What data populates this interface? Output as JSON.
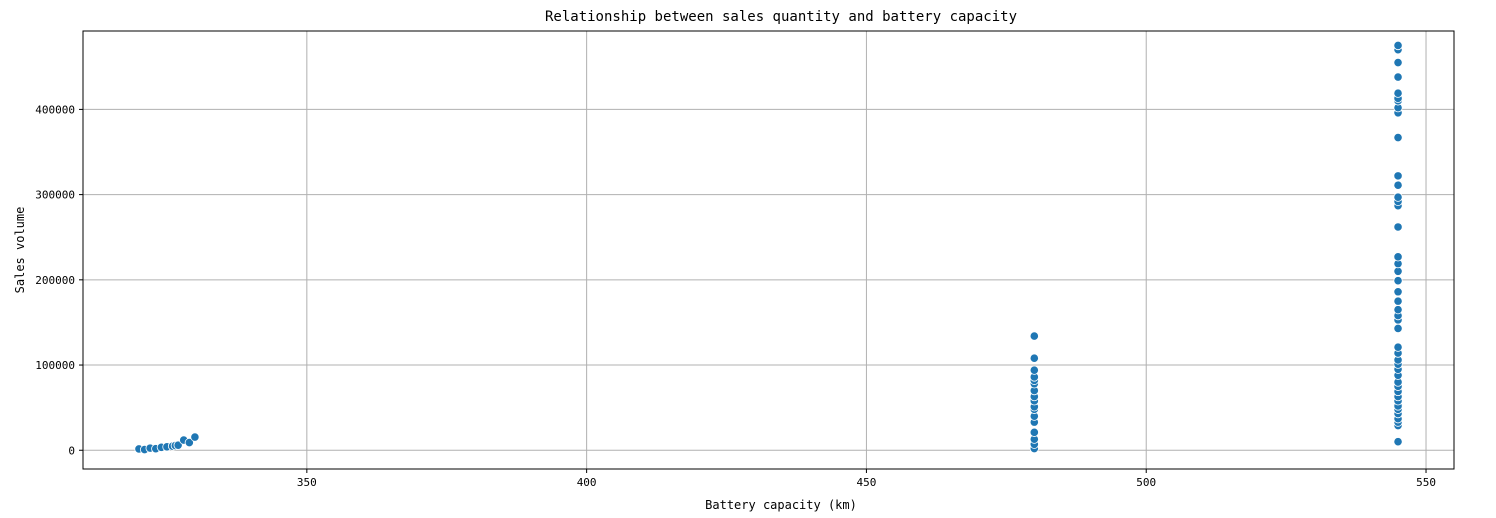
{
  "chart_data": {
    "type": "scatter",
    "title": "Relationship between sales quantity and battery capacity",
    "xlabel": "Battery capacity (km)",
    "ylabel": "Sales volume",
    "xlim": [
      310,
      555
    ],
    "ylim": [
      -22000,
      492000
    ],
    "xticks": [
      350,
      400,
      450,
      500,
      550
    ],
    "yticks": [
      0,
      100000,
      200000,
      300000,
      400000
    ],
    "grid": true,
    "legend": "none",
    "marker_color": "#1f77b4",
    "series": [
      {
        "points": [
          [
            320,
            1500
          ],
          [
            321,
            800
          ],
          [
            322,
            2500
          ],
          [
            323,
            1800
          ],
          [
            324,
            3500
          ],
          [
            325,
            4000
          ],
          [
            326,
            4800
          ],
          [
            326.5,
            5500
          ],
          [
            327,
            6000
          ],
          [
            328,
            12000
          ],
          [
            329,
            9000
          ],
          [
            330,
            15500
          ],
          [
            480,
            2000
          ],
          [
            480,
            7000
          ],
          [
            480,
            13000
          ],
          [
            480,
            21000
          ],
          [
            480,
            33000
          ],
          [
            480,
            40000
          ],
          [
            480,
            48000
          ],
          [
            480,
            51000
          ],
          [
            480,
            58000
          ],
          [
            480,
            63000
          ],
          [
            480,
            70000
          ],
          [
            480,
            78000
          ],
          [
            480,
            82000
          ],
          [
            480,
            86000
          ],
          [
            480,
            94000
          ],
          [
            480,
            108000
          ],
          [
            480,
            134000
          ],
          [
            545,
            10000
          ],
          [
            545,
            29000
          ],
          [
            545,
            33000
          ],
          [
            545,
            37000
          ],
          [
            545,
            43000
          ],
          [
            545,
            48000
          ],
          [
            545,
            52000
          ],
          [
            545,
            58000
          ],
          [
            545,
            63000
          ],
          [
            545,
            69000
          ],
          [
            545,
            75000
          ],
          [
            545,
            80000
          ],
          [
            545,
            88000
          ],
          [
            545,
            95000
          ],
          [
            545,
            101000
          ],
          [
            545,
            106000
          ],
          [
            545,
            114000
          ],
          [
            545,
            121000
          ],
          [
            545,
            143000
          ],
          [
            545,
            153000
          ],
          [
            545,
            158000
          ],
          [
            545,
            165000
          ],
          [
            545,
            175000
          ],
          [
            545,
            186000
          ],
          [
            545,
            199000
          ],
          [
            545,
            210000
          ],
          [
            545,
            219000
          ],
          [
            545,
            227000
          ],
          [
            545,
            262000
          ],
          [
            545,
            287000
          ],
          [
            545,
            292000
          ],
          [
            545,
            297000
          ],
          [
            545,
            311000
          ],
          [
            545,
            322000
          ],
          [
            545,
            367000
          ],
          [
            545,
            396000
          ],
          [
            545,
            402000
          ],
          [
            545,
            410000
          ],
          [
            545,
            413000
          ],
          [
            545,
            419000
          ],
          [
            545,
            438000
          ],
          [
            545,
            455000
          ],
          [
            545,
            470000
          ],
          [
            545,
            475000
          ]
        ]
      }
    ]
  }
}
